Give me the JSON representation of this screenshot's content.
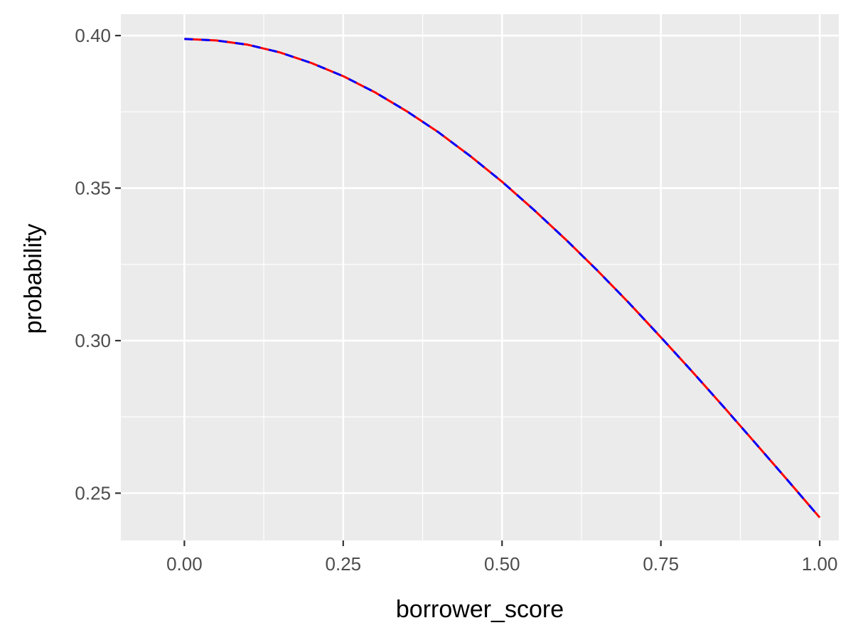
{
  "chart_data": {
    "type": "line",
    "title": "",
    "xlabel": "borrower_score",
    "ylabel": "probability",
    "xlim": [
      -0.1,
      1.03
    ],
    "ylim": [
      0.2345,
      0.407
    ],
    "x_ticks": [
      0.0,
      0.25,
      0.5,
      0.75,
      1.0
    ],
    "x_tick_labels": [
      "0.00",
      "0.25",
      "0.50",
      "0.75",
      "1.00"
    ],
    "x_minor_ticks": [
      0.125,
      0.375,
      0.625,
      0.875
    ],
    "y_ticks": [
      0.25,
      0.3,
      0.35,
      0.4
    ],
    "y_tick_labels": [
      "0.25",
      "0.30",
      "0.35",
      "0.40"
    ],
    "y_minor_ticks": [
      0.275,
      0.325,
      0.375
    ],
    "grid": true,
    "legend": "none",
    "colors": {
      "panel_background": "#ebebeb",
      "grid_line": "#ffffff",
      "series_1": "#ff0000",
      "series_2": "#0000ff"
    },
    "x": [
      0.0,
      0.05,
      0.1,
      0.15,
      0.2,
      0.25,
      0.3,
      0.35,
      0.4,
      0.45,
      0.5,
      0.55,
      0.6,
      0.65,
      0.7,
      0.75,
      0.8,
      0.85,
      0.9,
      0.95,
      1.0
    ],
    "series": [
      {
        "line_style": "solid",
        "values": [
          0.3989,
          0.3984,
          0.397,
          0.3945,
          0.391,
          0.3867,
          0.3814,
          0.3752,
          0.3683,
          0.3605,
          0.3521,
          0.3429,
          0.3332,
          0.323,
          0.3123,
          0.3011,
          0.2897,
          0.278,
          0.2661,
          0.2541,
          0.242
        ]
      },
      {
        "line_style": "dashed",
        "values": [
          0.3989,
          0.3984,
          0.397,
          0.3945,
          0.391,
          0.3867,
          0.3814,
          0.3752,
          0.3683,
          0.3605,
          0.3521,
          0.3429,
          0.3332,
          0.323,
          0.3123,
          0.3011,
          0.2897,
          0.278,
          0.2661,
          0.2541,
          0.242
        ]
      }
    ]
  }
}
